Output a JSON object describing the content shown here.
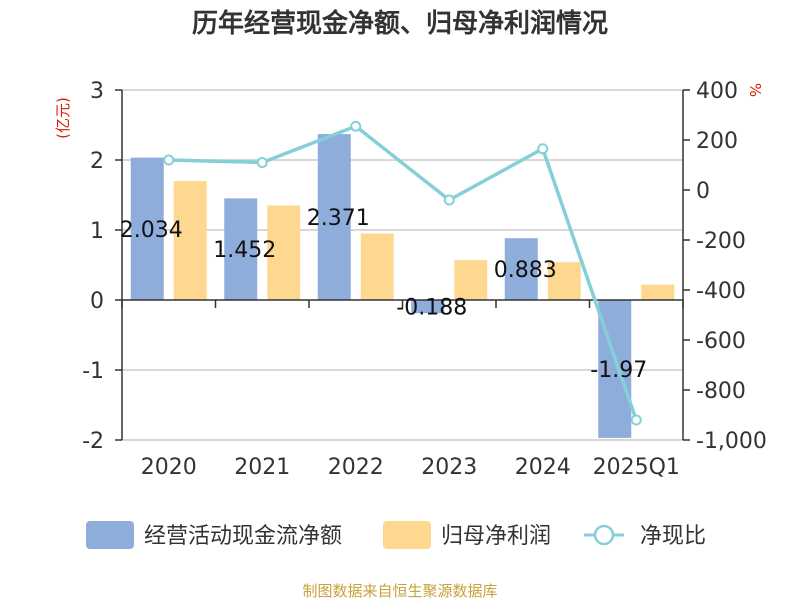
{
  "title": "历年经营现金净额、归母净利润情况",
  "source": "制图数据来自恒生聚源数据库",
  "chart_data": {
    "type": "bar",
    "categories": [
      "2020",
      "2021",
      "2022",
      "2023",
      "2024",
      "2025Q1"
    ],
    "left_axis": {
      "unit": "(亿元)",
      "ylim": [
        -2,
        3
      ],
      "ticks": [
        "-2",
        "-1",
        "0",
        "1",
        "2",
        "3"
      ]
    },
    "right_axis": {
      "unit": "%",
      "ylim": [
        -1000,
        400
      ],
      "ticks": [
        "-1,000",
        "-800",
        "-600",
        "-400",
        "-200",
        "0",
        "200",
        "400"
      ]
    },
    "series": [
      {
        "name": "经营活动现金流净额",
        "type": "bar",
        "axis": "left",
        "color": "#8eaddb",
        "values": [
          2.034,
          1.452,
          2.371,
          -0.188,
          0.883,
          -1.97
        ],
        "labels": [
          "2.034",
          "1.452",
          "2.371",
          "-0.188",
          "0.883",
          "-1.97"
        ]
      },
      {
        "name": "归母净利润",
        "type": "bar",
        "axis": "left",
        "color": "#fed891",
        "values": [
          1.7,
          1.35,
          0.95,
          0.57,
          0.54,
          0.22
        ]
      },
      {
        "name": "净现比",
        "type": "line",
        "axis": "right",
        "color": "#85d0d8",
        "values": [
          120,
          110,
          255,
          -40,
          165,
          -920
        ]
      }
    ],
    "grid": true,
    "legend": "bottom"
  }
}
